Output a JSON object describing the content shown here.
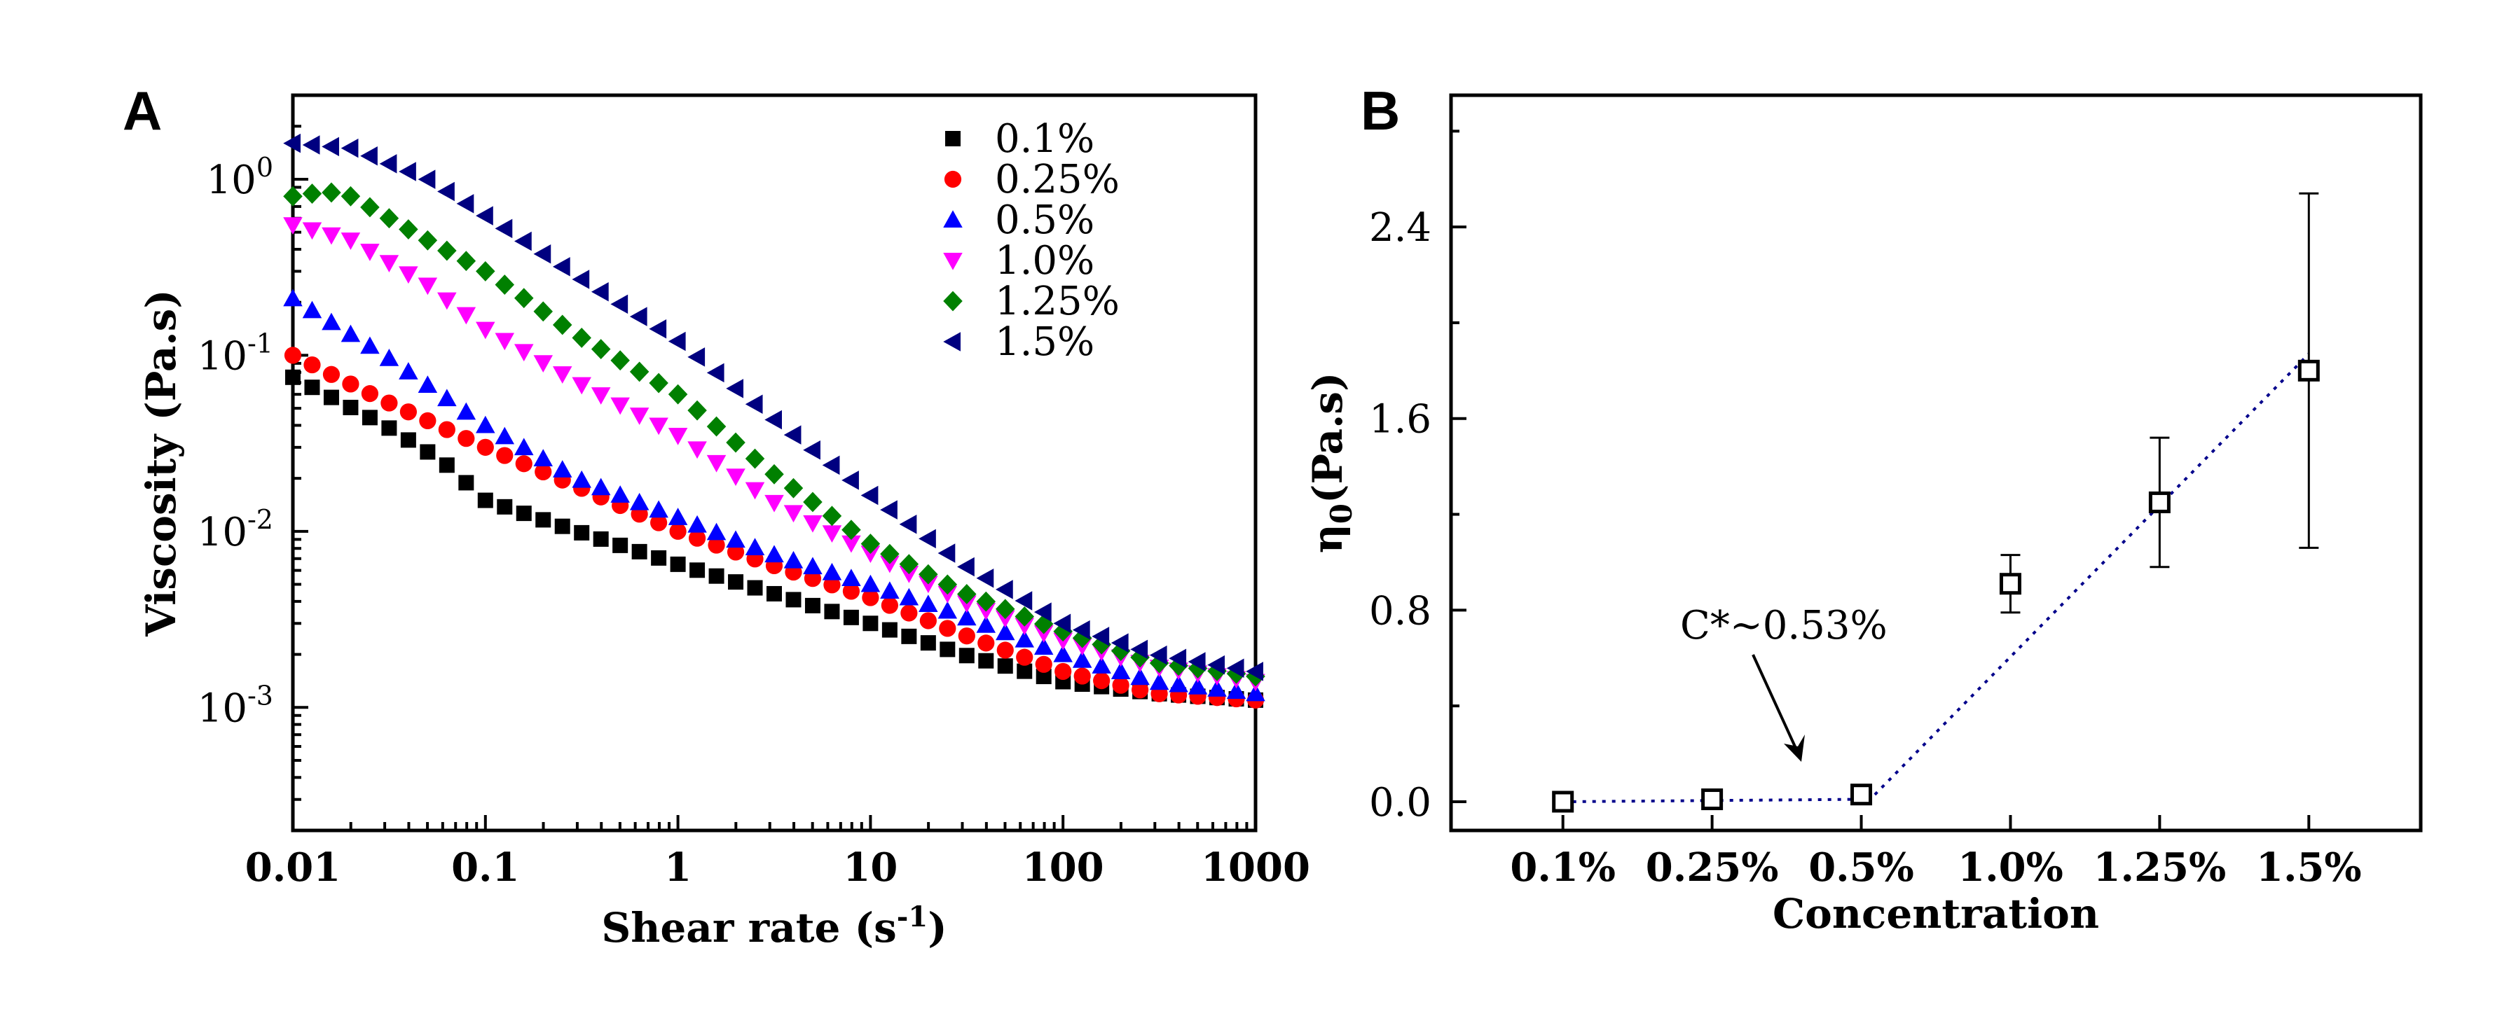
{
  "panels": {
    "a": {
      "letter": "A"
    },
    "b": {
      "letter": "B"
    }
  },
  "chart_data": [
    {
      "type": "scatter",
      "panel": "A",
      "xlabel": "Shear rate (s",
      "xlabel_sup": "-1",
      "xlabel_end": ")",
      "ylabel": "Viscosity (Pa.s)",
      "xscale": "log",
      "yscale": "log",
      "xlim": [
        0.01,
        1000
      ],
      "ylim": [
        0.0002,
        3
      ],
      "x_ticks": [
        0.01,
        0.1,
        1,
        10,
        100,
        1000
      ],
      "x_tick_labels": [
        "0.01",
        "0.1",
        "1",
        "10",
        "100",
        "1000"
      ],
      "y_ticks": [
        0.001,
        0.01,
        0.1,
        1
      ],
      "y_tick_labels": [
        {
          "base": "10",
          "exp": "-3"
        },
        {
          "base": "10",
          "exp": "-2"
        },
        {
          "base": "10",
          "exp": "-1"
        },
        {
          "base": "10",
          "exp": "0"
        }
      ],
      "legend_position": "top-right",
      "points_per_series": 51,
      "series": [
        {
          "name": "0.1%",
          "marker": "square",
          "color": "#000000",
          "anchors_x": [
            0.01,
            0.03,
            0.06,
            0.1,
            0.3,
            1,
            3,
            10,
            30,
            100,
            300,
            1000
          ],
          "anchors_y": [
            0.075,
            0.04,
            0.025,
            0.015,
            0.01,
            0.0065,
            0.0045,
            0.003,
            0.002,
            0.0014,
            0.0012,
            0.0011
          ]
        },
        {
          "name": "0.25%",
          "marker": "circle",
          "color": "#ff0000",
          "anchors_x": [
            0.01,
            0.03,
            0.1,
            0.3,
            1,
            3,
            10,
            30,
            100,
            300,
            1000
          ],
          "anchors_y": [
            0.1,
            0.055,
            0.03,
            0.018,
            0.01,
            0.0065,
            0.0042,
            0.0026,
            0.0016,
            0.0012,
            0.0011
          ]
        },
        {
          "name": "0.5%",
          "marker": "triangle-up",
          "color": "#0000ff",
          "anchors_x": [
            0.01,
            0.03,
            0.1,
            0.3,
            1,
            3,
            10,
            30,
            100,
            300,
            1000
          ],
          "anchors_y": [
            0.21,
            0.1,
            0.04,
            0.02,
            0.012,
            0.0075,
            0.005,
            0.0033,
            0.002,
            0.0014,
            0.0012
          ]
        },
        {
          "name": "1.0%",
          "marker": "triangle-down",
          "color": "#ff00ff",
          "anchors_x": [
            0.01,
            0.02,
            0.05,
            0.1,
            0.3,
            1,
            3,
            10,
            30,
            100,
            300,
            1000
          ],
          "anchors_y": [
            0.55,
            0.45,
            0.25,
            0.14,
            0.07,
            0.035,
            0.015,
            0.0075,
            0.004,
            0.0024,
            0.0017,
            0.0014
          ]
        },
        {
          "name": "1.25%",
          "marker": "diamond",
          "color": "#008000",
          "anchors_x": [
            0.01,
            0.015,
            0.02,
            0.05,
            0.1,
            0.3,
            1,
            3,
            10,
            30,
            100,
            300,
            1000
          ],
          "anchors_y": [
            0.8,
            0.85,
            0.8,
            0.45,
            0.3,
            0.13,
            0.06,
            0.022,
            0.0085,
            0.0045,
            0.0027,
            0.0018,
            0.0015
          ]
        },
        {
          "name": "1.5%",
          "marker": "triangle-left",
          "color": "#000080",
          "anchors_x": [
            0.01,
            0.02,
            0.05,
            0.1,
            0.3,
            1,
            3,
            10,
            30,
            100,
            300,
            1000
          ],
          "anchors_y": [
            1.6,
            1.5,
            1.0,
            0.62,
            0.28,
            0.12,
            0.045,
            0.016,
            0.0065,
            0.003,
            0.002,
            0.0016
          ]
        }
      ]
    },
    {
      "type": "scatter",
      "panel": "B",
      "xlabel": "Concentration",
      "ylabel_main": "η",
      "ylabel_sub": "0",
      "ylabel_end": "(Pa.s)",
      "categories": [
        "0.1%",
        "0.25%",
        "0.5%",
        "1.0%",
        "1.25%",
        "1.5%"
      ],
      "values": [
        0.0,
        0.01,
        0.03,
        0.91,
        1.25,
        1.8
      ],
      "error": [
        0.0,
        0.0,
        0.0,
        0.12,
        0.27,
        0.74
      ],
      "ylim": [
        -0.12,
        2.95
      ],
      "y_ticks": [
        0.0,
        0.8,
        1.6,
        2.4
      ],
      "y_tick_labels": [
        "0.0",
        "0.8",
        "1.6",
        "2.4"
      ],
      "fit_line": {
        "style": "dotted",
        "color": "#00008b",
        "points": [
          {
            "category": "0.1%",
            "y": 0.0
          },
          {
            "category": "0.5%",
            "y": 0.01
          },
          {
            "category": "0.53%",
            "y": 0.01
          },
          {
            "category": "1.5%",
            "y": 1.87
          }
        ]
      },
      "annotation": {
        "text": "C*~0.53%",
        "points_to": "0.53%"
      }
    }
  ]
}
